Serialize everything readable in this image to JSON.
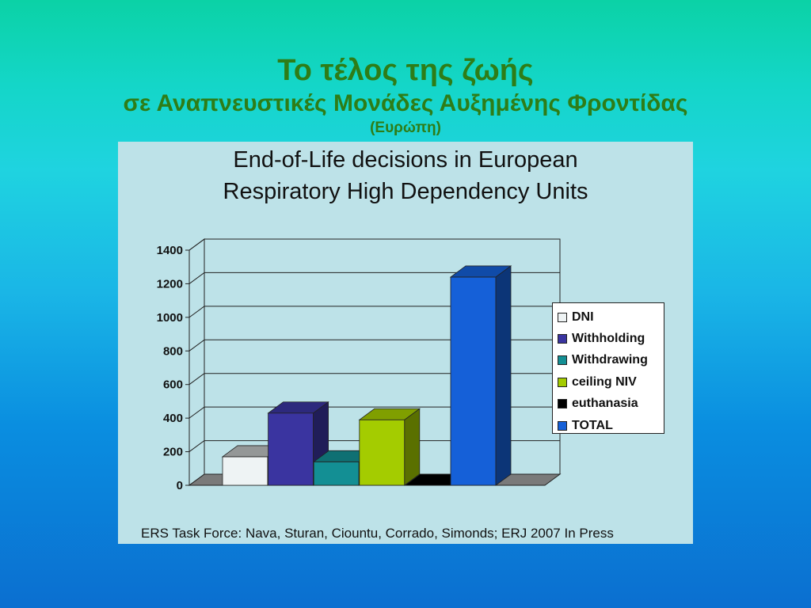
{
  "slide": {
    "title_line1": "Το τέλος της ζωής",
    "title_line2": "σε Αναπνευστικές Μονάδες Αυξημένης Φροντίδας",
    "title_line3": "(Ευρώπη)"
  },
  "chart_data": {
    "type": "bar",
    "title_line1": "End-of-Life decisions in European",
    "title_line2": "Respiratory High Dependency Units",
    "xlabel": "",
    "ylabel": "",
    "ylim": [
      0,
      1400
    ],
    "yticks": [
      "0",
      "200",
      "400",
      "600",
      "800",
      "1000",
      "1200",
      "1400"
    ],
    "grid": true,
    "legend_position": "right",
    "series": [
      {
        "name": "DNI",
        "value": 170,
        "color": "#eef3f4"
      },
      {
        "name": "Withholding",
        "value": 430,
        "color": "#3a34a0"
      },
      {
        "name": "Withdrawing",
        "value": 140,
        "color": "#138f94"
      },
      {
        "name": "ceiling NIV",
        "value": 390,
        "color": "#a4cc00"
      },
      {
        "name": "euthanasia",
        "value": 0,
        "color": "#000000"
      },
      {
        "name": "TOTAL",
        "value": 1240,
        "color": "#1560d8"
      }
    ],
    "source": "ERS Task Force:  Nava, Sturan, Ciountu, Corrado, Simonds;  ERJ 2007 In Press"
  }
}
